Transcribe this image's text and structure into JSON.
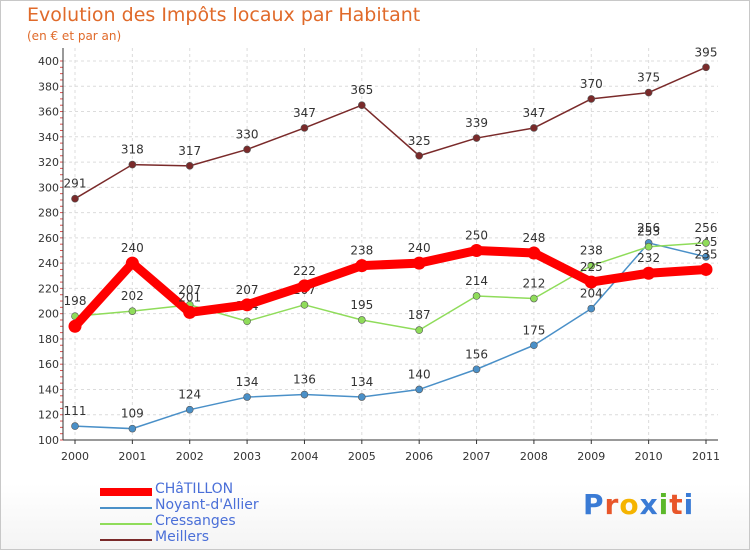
{
  "chart_data": {
    "type": "line",
    "title": "Evolution des Impôts locaux par Habitant",
    "subtitle": "(en € et par an)",
    "xlabel": "",
    "ylabel": "",
    "x": [
      "2000",
      "2001",
      "2002",
      "2003",
      "2004",
      "2005",
      "2006",
      "2007",
      "2008",
      "2009",
      "2010",
      "2011"
    ],
    "ylim": [
      100,
      400
    ],
    "yticks": [
      100,
      120,
      140,
      160,
      180,
      200,
      220,
      240,
      260,
      280,
      300,
      320,
      340,
      360,
      380,
      400
    ],
    "grid": true,
    "legend_position": "bottom-left",
    "series": [
      {
        "name": "CHâTILLON",
        "color": "#ff0000",
        "values": [
          190,
          240,
          201,
          207,
          222,
          238,
          240,
          250,
          248,
          225,
          232,
          235
        ],
        "labels": [
          "",
          "240",
          "201",
          "207",
          "222",
          "238",
          "240",
          "250",
          "248",
          "225",
          "232",
          "235"
        ]
      },
      {
        "name": "Noyant-d'Allier",
        "color": "#4a90c8",
        "values": [
          111,
          109,
          124,
          134,
          136,
          134,
          140,
          156,
          175,
          204,
          256,
          245
        ],
        "labels": [
          "111",
          "109",
          "124",
          "134",
          "136",
          "134",
          "140",
          "156",
          "175",
          "204",
          "256",
          "245"
        ]
      },
      {
        "name": "Cressanges",
        "color": "#8fdc5a",
        "values": [
          198,
          202,
          207,
          194,
          207,
          195,
          187,
          214,
          212,
          238,
          253,
          256
        ],
        "labels": [
          "198",
          "202",
          "207",
          "194",
          "207",
          "195",
          "187",
          "214",
          "212",
          "238",
          "253",
          "256"
        ]
      },
      {
        "name": "Meillers",
        "color": "#7a2a2a",
        "values": [
          291,
          318,
          317,
          330,
          347,
          365,
          325,
          339,
          347,
          370,
          375,
          395
        ],
        "labels": [
          "291",
          "318",
          "317",
          "330",
          "347",
          "365",
          "325",
          "339",
          "347",
          "370",
          "375",
          "395"
        ]
      }
    ]
  },
  "logo": {
    "text": "Proxiti",
    "letters": [
      "P",
      "r",
      "o",
      "x",
      "i",
      "t",
      "i"
    ],
    "colors": [
      "#3a7bd5",
      "#e8562a",
      "#f5b400",
      "#3a7bd5",
      "#5cb82a",
      "#e8562a",
      "#3a7bd5"
    ]
  }
}
